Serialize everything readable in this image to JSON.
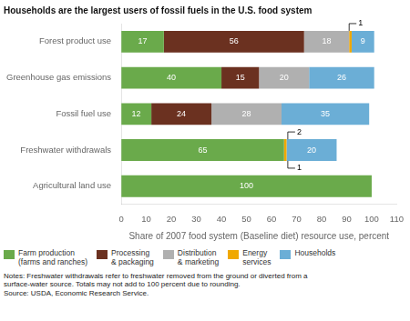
{
  "chart_data": {
    "type": "bar",
    "orientation": "horizontal",
    "stacked": true,
    "title": "Households are the largest users of fossil fuels in the U.S. food system",
    "categories": [
      "Agricultural land use",
      "Freshwater withdrawals",
      "Fossil fuel use",
      "Greenhouse gas emissions",
      "Forest product use"
    ],
    "series": [
      {
        "name": "Farm production\n(farms and ranches)",
        "color": "#6aaa4b",
        "values": [
          100,
          65,
          12,
          40,
          17
        ],
        "value_labels": [
          "100",
          "65",
          "12",
          "40",
          "17"
        ]
      },
      {
        "name": "Processing\n& packaging",
        "color": "#6b3120",
        "values": [
          0,
          0,
          24,
          15,
          56
        ],
        "value_labels": [
          null,
          null,
          "24",
          "15",
          "56"
        ]
      },
      {
        "name": "Distribution\n& marketing",
        "color": "#b0b0b0",
        "values": [
          0,
          0,
          28,
          20,
          18
        ],
        "value_labels": [
          null,
          null,
          "28",
          "20",
          "18"
        ]
      },
      {
        "name": "Energy\nservices",
        "color": "#f0a800",
        "values": [
          0,
          1,
          0,
          0,
          1
        ],
        "value_labels": [
          null,
          null,
          null,
          null,
          null
        ]
      },
      {
        "name": "Households",
        "color": "#6baed6",
        "values": [
          0,
          20,
          35,
          26,
          9
        ],
        "value_labels": [
          null,
          "20",
          "35",
          "26",
          "9"
        ]
      }
    ],
    "data_labels": true,
    "xlabel": "Share of 2007 food system (Baseline diet) resource use, percent",
    "xlim": [
      0,
      110
    ],
    "xticks": [
      0,
      10,
      20,
      30,
      40,
      50,
      60,
      70,
      80,
      90,
      100,
      110
    ],
    "grid": false,
    "legend": "bottom",
    "annotations": [
      {
        "text": "2",
        "category": "Freshwater withdrawals",
        "x": 66.5,
        "side": "above"
      },
      {
        "text": "1",
        "category": "Freshwater withdrawals",
        "x": 66.5,
        "side": "below"
      },
      {
        "text": "1",
        "category": "Forest product use",
        "x": 91,
        "side": "above"
      }
    ],
    "notes": [
      "Notes: Freshwater withdrawals refer to freshwater removed from the ground or diverted from a",
      "surface-water source. Totals may not add to 100 percent due to rounding.",
      "Source: USDA, Economic Research Service."
    ]
  }
}
